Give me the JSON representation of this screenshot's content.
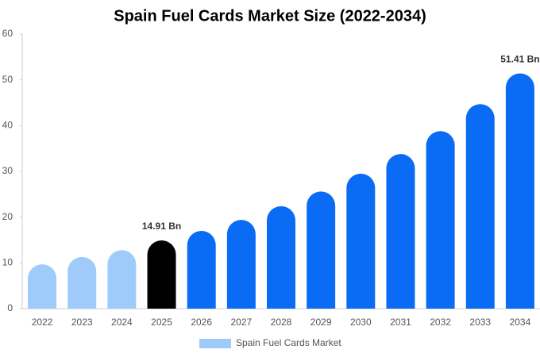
{
  "chart_data": {
    "type": "bar",
    "title": "Spain Fuel Cards Market Size (2022-2034)",
    "categories": [
      "2022",
      "2023",
      "2024",
      "2025",
      "2026",
      "2027",
      "2028",
      "2029",
      "2030",
      "2031",
      "2032",
      "2033",
      "2034"
    ],
    "series": [
      {
        "name": "Spain Fuel Cards Market",
        "color": "#9fcbfa",
        "colors": [
          "#9fcbfa",
          "#9fcbfa",
          "#9fcbfa",
          "#000000",
          "#0a6cf5",
          "#0a6cf5",
          "#0a6cf5",
          "#0a6cf5",
          "#0a6cf5",
          "#0a6cf5",
          "#0a6cf5",
          "#0a6cf5",
          "#0a6cf5"
        ],
        "values": [
          9.7,
          11.3,
          12.8,
          14.91,
          17.0,
          19.4,
          22.4,
          25.6,
          29.5,
          33.8,
          38.8,
          44.7,
          51.41
        ],
        "value_labels": [
          null,
          null,
          null,
          "14.91 Bn",
          null,
          null,
          null,
          null,
          null,
          null,
          null,
          null,
          "51.41 Bn"
        ]
      }
    ],
    "ylim": [
      0,
      60
    ],
    "yticks": [
      0,
      10,
      20,
      30,
      40,
      50,
      60
    ]
  }
}
